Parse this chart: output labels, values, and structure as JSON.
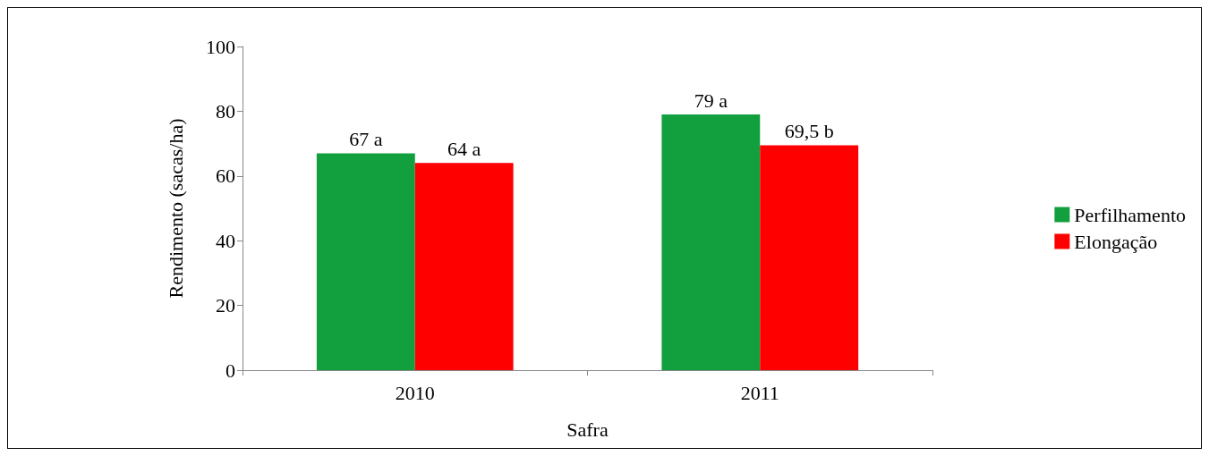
{
  "chart_data": {
    "type": "bar",
    "xlabel": "Safra",
    "ylabel": "Rendimento (sacas/ha)",
    "categories": [
      "2010",
      "2011"
    ],
    "series": [
      {
        "name": "Perfilhamento",
        "color": "#12a03e",
        "values": [
          67,
          79
        ],
        "value_labels": [
          "67 a",
          "79 a"
        ]
      },
      {
        "name": "Elongação",
        "color": "#ff0000",
        "values": [
          64,
          69.5
        ],
        "value_labels": [
          "64 a",
          "69,5 b"
        ]
      }
    ],
    "ylim": [
      0,
      100
    ],
    "yticks": [
      0,
      20,
      40,
      60,
      80,
      100
    ],
    "grid": false,
    "legend": "right"
  }
}
